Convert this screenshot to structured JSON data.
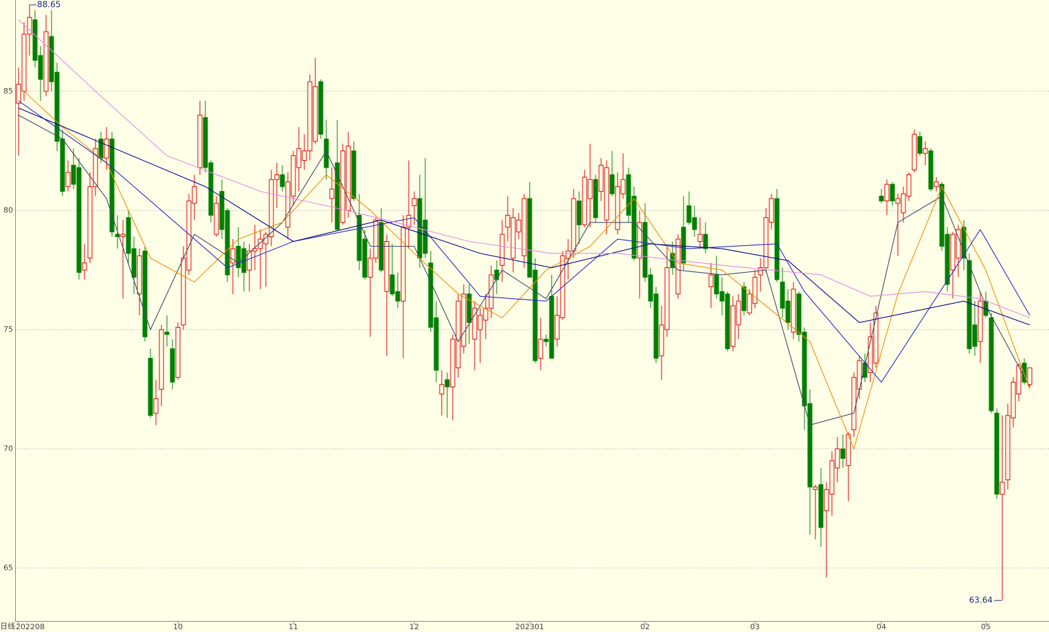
{
  "chart_data": {
    "type": "candlestick",
    "period_label": "日线",
    "ylim": [
      62.75,
      88.83
    ],
    "yticks": [
      65,
      70,
      75,
      80,
      85
    ],
    "grid": true,
    "up_color": "#e00000",
    "down_color": "#008000",
    "xticks": [
      {
        "value": 0,
        "label": "202208"
      },
      {
        "value": 29,
        "label": "10"
      },
      {
        "value": 50,
        "label": "11"
      },
      {
        "value": 72,
        "label": "12"
      },
      {
        "value": 93,
        "label": "202301"
      },
      {
        "value": 114,
        "label": "02"
      },
      {
        "value": 134,
        "label": "03"
      },
      {
        "value": 157,
        "label": "04"
      },
      {
        "value": 176,
        "label": "05"
      }
    ],
    "max_label": 88.65,
    "min_label": 63.64,
    "candles": [
      [
        84.5,
        86,
        82.3,
        85.3
      ],
      [
        85,
        87.9,
        84.6,
        87.4
      ],
      [
        87.4,
        88.65,
        86.5,
        88.1
      ],
      [
        88,
        88.4,
        86,
        86.3
      ],
      [
        86.5,
        86.9,
        84.6,
        85.5
      ],
      [
        85,
        88.2,
        84.8,
        87.5
      ],
      [
        87.3,
        88.4,
        85,
        85.4
      ],
      [
        85.8,
        86.2,
        82.5,
        82.9
      ],
      [
        83,
        83.4,
        80.6,
        80.8
      ],
      [
        81,
        82.1,
        80.8,
        81.6
      ],
      [
        81.9,
        82.6,
        80.9,
        81.1
      ],
      [
        81.8,
        82.2,
        77.1,
        77.4
      ],
      [
        77.5,
        78.6,
        77.1,
        77.8
      ],
      [
        78,
        81.6,
        77.8,
        81
      ],
      [
        81,
        83,
        80.6,
        82.6
      ],
      [
        83,
        83.3,
        82,
        82.2
      ],
      [
        82.2,
        83.5,
        81.7,
        83
      ],
      [
        83,
        83.3,
        78.9,
        79.1
      ],
      [
        79,
        79.8,
        78.4,
        78.9
      ],
      [
        78.9,
        79.6,
        76.3,
        79
      ],
      [
        79.7,
        80,
        77.8,
        78.2
      ],
      [
        78.4,
        78.9,
        76.5,
        77.2
      ],
      [
        76.5,
        78.4,
        75.6,
        78.1
      ],
      [
        78.3,
        78.5,
        74.5,
        74.7
      ],
      [
        73.8,
        74.2,
        71.3,
        71.4
      ],
      [
        71.5,
        72.9,
        71,
        72.1
      ],
      [
        72.5,
        75.2,
        71.8,
        75
      ],
      [
        74.9,
        75.6,
        74.3,
        74.8
      ],
      [
        74.2,
        74.6,
        72.5,
        72.8
      ],
      [
        73,
        75.3,
        72.9,
        75.1
      ],
      [
        75.2,
        78.5,
        75,
        78
      ],
      [
        77.5,
        80.7,
        77.3,
        80.4
      ],
      [
        80.3,
        81.5,
        79.6,
        81
      ],
      [
        81.8,
        84.6,
        81.5,
        84
      ],
      [
        83.9,
        84.6,
        81.6,
        81.8
      ],
      [
        82,
        82.1,
        79.5,
        79.8
      ],
      [
        79,
        80.6,
        78.9,
        80.3
      ],
      [
        80.8,
        81.3,
        78.8,
        79.2
      ],
      [
        80,
        80.1,
        77,
        77.3
      ],
      [
        77.8,
        78.8,
        76.5,
        78.4
      ],
      [
        78.5,
        79.3,
        77.2,
        77.6
      ],
      [
        78.4,
        78.7,
        76.6,
        77.4
      ],
      [
        77.5,
        78.6,
        76.6,
        78.3
      ],
      [
        78.3,
        79.4,
        77.5,
        78.4
      ],
      [
        78.4,
        79.2,
        76.7,
        78.8
      ],
      [
        78.6,
        79.1,
        76.8,
        79
      ],
      [
        78.9,
        81.7,
        78.5,
        81.3
      ],
      [
        81.3,
        82,
        80.1,
        81.5
      ],
      [
        81.5,
        81.9,
        80.8,
        81
      ],
      [
        79.3,
        81.6,
        78.8,
        81.2
      ],
      [
        80.6,
        82.5,
        80.2,
        82.3
      ],
      [
        81.8,
        83.5,
        80.8,
        82.6
      ],
      [
        82.1,
        83.2,
        81.7,
        82.5
      ],
      [
        82.5,
        85.7,
        82.1,
        85.4
      ],
      [
        82.9,
        86.4,
        82.8,
        85.2
      ],
      [
        85.4,
        85.5,
        83,
        83.2
      ],
      [
        83,
        83.8,
        81.3,
        81.8
      ],
      [
        80.5,
        81.8,
        79.5,
        80.9
      ],
      [
        82,
        83.8,
        79.2,
        79.2
      ],
      [
        79.5,
        82.8,
        79.4,
        82.5
      ],
      [
        80,
        83.3,
        79.7,
        82.7
      ],
      [
        82.5,
        82.9,
        80.4,
        80.5
      ],
      [
        79.8,
        80.7,
        77.5,
        77.9
      ],
      [
        78.8,
        79.2,
        77.1,
        77.2
      ],
      [
        77.2,
        78.4,
        74.7,
        78
      ],
      [
        78,
        79.7,
        77.8,
        79.6
      ],
      [
        79.5,
        80.1,
        77.4,
        77.5
      ],
      [
        76.6,
        79,
        73.9,
        78.7
      ],
      [
        77.3,
        78.6,
        76.4,
        76.5
      ],
      [
        76.6,
        77.4,
        75.9,
        76.2
      ],
      [
        76.2,
        79.8,
        73.8,
        79.3
      ],
      [
        79.3,
        82.1,
        78.4,
        79.8
      ],
      [
        80.2,
        80.8,
        79.4,
        80.5
      ],
      [
        80.5,
        81.5,
        77.6,
        78
      ],
      [
        79.6,
        82.2,
        78,
        78.2
      ],
      [
        77.8,
        78.3,
        74.9,
        75.1
      ],
      [
        75.5,
        76.2,
        72.8,
        73.3
      ],
      [
        72.3,
        73.3,
        71.4,
        72.7
      ],
      [
        72.9,
        73.2,
        71.3,
        72.6
      ],
      [
        72.6,
        74.8,
        71.2,
        74.6
      ],
      [
        73.4,
        76.5,
        73,
        76.2
      ],
      [
        74.3,
        76.9,
        74,
        76.5
      ],
      [
        76.5,
        76.9,
        74.4,
        75.3
      ],
      [
        74.6,
        76.2,
        73.3,
        75.9
      ],
      [
        75,
        75.9,
        73.6,
        75.6
      ],
      [
        75.4,
        76.5,
        74.6,
        75.9
      ],
      [
        75.9,
        77.7,
        75.5,
        77.3
      ],
      [
        77.5,
        77.9,
        76.5,
        77.1
      ],
      [
        77.7,
        79.6,
        77,
        79
      ],
      [
        79.3,
        80.6,
        78.7,
        79.8
      ],
      [
        78,
        80.1,
        77.4,
        79.7
      ],
      [
        79.1,
        79.9,
        78.8,
        79.6
      ],
      [
        78.1,
        80.7,
        77.6,
        80.5
      ],
      [
        80.5,
        81.2,
        77.2,
        77.2
      ],
      [
        77.5,
        78,
        73.6,
        73.7
      ],
      [
        73.8,
        75.5,
        73.3,
        74.6
      ],
      [
        74.6,
        74.8,
        74.3,
        74.5
      ],
      [
        76.4,
        77.3,
        73.8,
        73.8
      ],
      [
        74.6,
        76.4,
        74.3,
        75.6
      ],
      [
        75.5,
        78.3,
        75.4,
        78.1
      ],
      [
        78,
        78.8,
        77.1,
        78.3
      ],
      [
        78.3,
        80.9,
        78,
        80.5
      ],
      [
        80.4,
        80.8,
        78.6,
        79.4
      ],
      [
        79.4,
        81.7,
        79.3,
        81.4
      ],
      [
        80.5,
        82.8,
        79.3,
        81.3
      ],
      [
        81.3,
        81.5,
        79.5,
        79.7
      ],
      [
        80.8,
        82.2,
        80.4,
        81.9
      ],
      [
        79.6,
        82.1,
        79,
        81.8
      ],
      [
        81.5,
        82.5,
        80.6,
        80.7
      ],
      [
        79.2,
        81.6,
        79,
        81
      ],
      [
        80.7,
        82.4,
        80.5,
        81.3
      ],
      [
        81.5,
        81.8,
        79.5,
        79.8
      ],
      [
        80.6,
        81,
        77.9,
        78
      ],
      [
        78,
        80,
        76.3,
        79.5
      ],
      [
        79.5,
        80.3,
        77,
        77.2
      ],
      [
        77.3,
        77.6,
        75.9,
        76.2
      ],
      [
        76.5,
        76.8,
        73.6,
        73.8
      ],
      [
        73.9,
        76,
        72.9,
        75.2
      ],
      [
        75,
        78.5,
        74.7,
        77.6
      ],
      [
        78.2,
        78.7,
        77.3,
        77.6
      ],
      [
        76.5,
        79,
        76.3,
        78.8
      ],
      [
        79.3,
        80.6,
        77.5,
        77.8
      ],
      [
        80.2,
        80.8,
        79.4,
        79.5
      ],
      [
        79.7,
        80.2,
        78.9,
        79.2
      ],
      [
        78.7,
        79.7,
        78.4,
        79
      ],
      [
        79,
        79.5,
        78.2,
        78.4
      ],
      [
        76.8,
        77.8,
        75.9,
        77.3
      ],
      [
        77.3,
        78.1,
        76.3,
        76.5
      ],
      [
        76.6,
        77.2,
        75.6,
        76.2
      ],
      [
        76.5,
        76.6,
        74.1,
        74.2
      ],
      [
        74.3,
        76.4,
        74.1,
        76
      ],
      [
        75.2,
        76.5,
        74.6,
        76.2
      ],
      [
        76.8,
        77,
        75.6,
        75.8
      ],
      [
        75.7,
        76.7,
        75.6,
        76.5
      ],
      [
        76.1,
        77.5,
        75.9,
        77.2
      ],
      [
        77.3,
        78,
        76.6,
        77.6
      ],
      [
        77.6,
        80.1,
        77.4,
        79.7
      ],
      [
        79.5,
        80.7,
        79.2,
        80.5
      ],
      [
        80.5,
        80.9,
        77,
        77.1
      ],
      [
        77,
        77.6,
        75.5,
        75.9
      ],
      [
        76.2,
        76.7,
        75,
        75.3
      ],
      [
        74.9,
        77,
        74.6,
        76.7
      ],
      [
        76.5,
        76.6,
        74.5,
        74.8
      ],
      [
        74.9,
        75.1,
        70.8,
        71.8
      ],
      [
        71.9,
        72.5,
        66.4,
        68.4
      ],
      [
        68.3,
        68.5,
        66.2,
        68.4
      ],
      [
        68.5,
        69.2,
        65.9,
        66.7
      ],
      [
        67.4,
        68.6,
        64.6,
        68.3
      ],
      [
        68.1,
        69.9,
        67.2,
        69.5
      ],
      [
        69.2,
        70.5,
        68.6,
        70
      ],
      [
        70,
        70.6,
        69.2,
        69.6
      ],
      [
        69.3,
        70.7,
        67.8,
        70.6
      ],
      [
        70.8,
        73.2,
        70.5,
        73
      ],
      [
        72.5,
        73.9,
        72.1,
        73.7
      ],
      [
        73.6,
        74,
        72.8,
        73
      ],
      [
        73.2,
        75.3,
        72.8,
        74.7
      ],
      [
        73.6,
        76,
        73.4,
        75.7
      ],
      [
        80.6,
        80.9,
        80.3,
        80.4
      ],
      [
        80.4,
        81.3,
        79.8,
        81.1
      ],
      [
        81.1,
        81.2,
        80.2,
        80.4
      ],
      [
        80.3,
        80.7,
        78.1,
        80.5
      ],
      [
        79.9,
        81,
        79.5,
        80.7
      ],
      [
        80.6,
        81.6,
        80.4,
        81.5
      ],
      [
        81.7,
        83.4,
        81.6,
        83.2
      ],
      [
        83.1,
        83.3,
        82.3,
        82.4
      ],
      [
        82.4,
        82.9,
        81.9,
        82.6
      ],
      [
        82.5,
        82.6,
        80.8,
        80.9
      ],
      [
        81,
        81.4,
        80.8,
        81.2
      ],
      [
        81.1,
        81.2,
        78.3,
        78.5
      ],
      [
        79,
        79.3,
        76.6,
        76.9
      ],
      [
        77.5,
        79.1,
        76.3,
        79
      ],
      [
        78,
        79.4,
        77.2,
        79.2
      ],
      [
        79.3,
        79.6,
        77.5,
        78
      ],
      [
        77.9,
        78.2,
        74,
        74.2
      ],
      [
        75.2,
        76.2,
        73.9,
        74.3
      ],
      [
        74.5,
        76.6,
        73.6,
        76.2
      ],
      [
        76.2,
        76.6,
        75.5,
        75.6
      ],
      [
        75.5,
        75.7,
        71.5,
        71.6
      ],
      [
        71.5,
        71.7,
        67.9,
        68.1
      ],
      [
        68.1,
        71.4,
        63.64,
        68.6
      ],
      [
        68.7,
        71.9,
        68.3,
        71.4
      ],
      [
        71.3,
        73,
        70.9,
        72.8
      ],
      [
        72.3,
        73.6,
        72,
        73.5
      ],
      [
        73.6,
        73.8,
        72.7,
        72.8
      ],
      [
        72.7,
        73.4,
        72.6,
        73.4
      ]
    ],
    "series": [
      {
        "color": "#3c4a66",
        "x": [
          0,
          8,
          16,
          24,
          32,
          40,
          48,
          56,
          64,
          72,
          80,
          88,
          96,
          104,
          112,
          120,
          128,
          136,
          144,
          152,
          160,
          168,
          176,
          184
        ],
        "values": [
          84,
          83,
          80.5,
          75,
          79,
          77.8,
          79.5,
          82.5,
          78.5,
          78.5,
          74.5,
          77.5,
          76.3,
          79.5,
          79.5,
          77.5,
          77.3,
          77.5,
          71,
          71.5,
          79.5,
          80.6,
          76,
          72.6
        ]
      },
      {
        "color": "#f08c00",
        "x": [
          1,
          8,
          16,
          24,
          32,
          40,
          48,
          56,
          64,
          72,
          80,
          88,
          96,
          104,
          112,
          120,
          128,
          136,
          144,
          152,
          160,
          168,
          176,
          184
        ],
        "values": [
          85,
          83.5,
          82,
          78,
          77,
          78.8,
          79.5,
          81.5,
          80,
          78.2,
          76.5,
          75.5,
          77.5,
          78.5,
          80.5,
          77.8,
          77.5,
          76,
          74.5,
          70,
          76.5,
          81,
          77.5,
          72.5
        ]
      },
      {
        "color": "#2828c8",
        "x": [
          0,
          16,
          38,
          50,
          72,
          84,
          96,
          109,
          122,
          138,
          143,
          157,
          175,
          184
        ],
        "values": [
          84.6,
          82,
          77.6,
          78.7,
          79.7,
          76.4,
          76.2,
          78.8,
          78.4,
          78.6,
          76.6,
          72.8,
          79.2,
          75.6
        ]
      },
      {
        "color": "#000090",
        "x": [
          0,
          34,
          50,
          66,
          84,
          97,
          115,
          128,
          140,
          153,
          172,
          184
        ],
        "values": [
          84.3,
          81,
          78.7,
          79.6,
          78.2,
          77.6,
          78.6,
          78.4,
          77.9,
          75.3,
          76.2,
          75.2
        ]
      },
      {
        "color": "#e38ae3",
        "x": [
          0,
          14,
          27,
          44,
          56,
          67,
          82,
          97,
          109,
          128,
          146,
          155,
          165,
          175,
          184
        ],
        "values": [
          88,
          85,
          82.3,
          80.8,
          80.2,
          79.6,
          78.7,
          78.2,
          78.2,
          77.7,
          77.3,
          76.4,
          76.6,
          76.3,
          75.5
        ]
      }
    ]
  }
}
